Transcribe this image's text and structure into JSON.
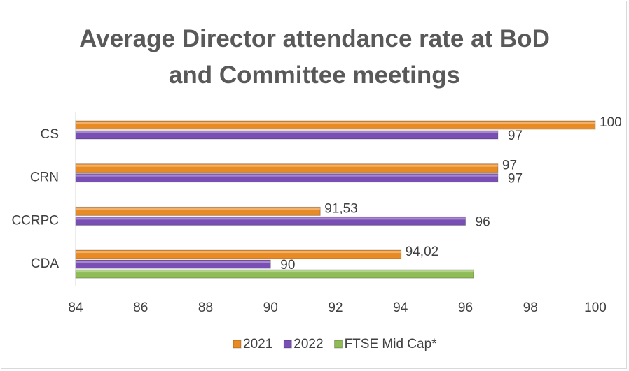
{
  "chart_data": {
    "type": "bar",
    "orientation": "horizontal",
    "title": "Average Director attendance rate at BoD and Committee meetings",
    "categories": [
      "CS",
      "CRN",
      "CCRPC",
      "CDA"
    ],
    "series": [
      {
        "name": "2021",
        "color": "#e98b24",
        "values": [
          100,
          97,
          91.53,
          94.02
        ],
        "value_labels": [
          "100",
          "97",
          "91,53",
          "94,02"
        ]
      },
      {
        "name": "2022",
        "color": "#7a4fb5",
        "values": [
          97,
          97,
          96,
          90
        ]
      },
      {
        "name": "FTSE Mid Cap*",
        "color": "#8fbc56",
        "values": [
          null,
          null,
          null,
          96.25
        ]
      }
    ],
    "xlim": [
      84,
      100
    ],
    "xticks": [
      84,
      86,
      88,
      90,
      92,
      94,
      96,
      98,
      100
    ],
    "legend": "bottom",
    "grid": false
  }
}
